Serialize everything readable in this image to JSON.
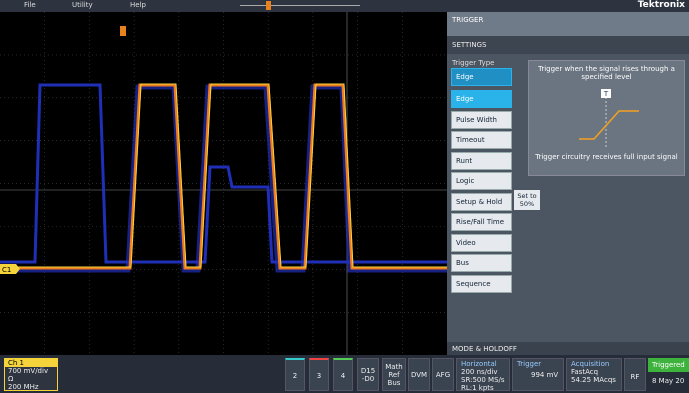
{
  "menu": [
    "File",
    "Utility",
    "Help"
  ],
  "channel_marker": "C1",
  "logo": "Tektronix",
  "panel": {
    "title": "TRIGGER",
    "section": "SETTINGS",
    "trigger_type_label": "Trigger Type",
    "selected": "Edge",
    "options": [
      "Edge",
      "Pulse Width",
      "Timeout",
      "Runt",
      "Logic",
      "Setup & Hold",
      "Rise/Fall Time",
      "Video",
      "Bus",
      "Sequence"
    ],
    "set_to_50": [
      "Set to",
      "50%"
    ],
    "description": "Trigger when the signal rises through a specified level",
    "diagram_marker": "T",
    "note": "Trigger circuitry receives full input signal",
    "footer": "MODE & HOLDOFF"
  },
  "bottom": {
    "ch1": {
      "label": "Ch 1",
      "scale": "700 mV/div",
      "impedance": "Ω",
      "bandwidth": "200 MHz"
    },
    "channels": [
      "2",
      "3",
      "4"
    ],
    "digital": [
      "D15",
      "-D0"
    ],
    "math": [
      "Math",
      "Ref",
      "Bus"
    ],
    "dvm": "DVM",
    "afg": "AFG",
    "horizontal": {
      "title": "Horizontal",
      "lines": [
        "200 ns/div",
        "SR:500 MS/s",
        "RL:1 kpts"
      ]
    },
    "trigger": {
      "title": "Trigger",
      "level": "994 mV"
    },
    "acquisition": {
      "title": "Acquisition",
      "lines": [
        "FastAcq",
        "54.25 MAcqs"
      ]
    },
    "rf": "RF",
    "status": "Triggered",
    "date": "8 May 20"
  }
}
